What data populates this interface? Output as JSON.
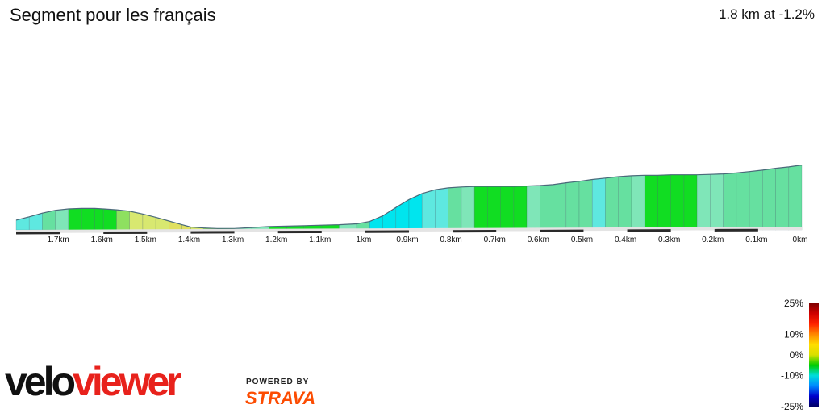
{
  "header": {
    "title": "Segment pour les français",
    "summary": "1.8 km at -1.2%"
  },
  "chart_data": {
    "type": "area",
    "xlabel": "",
    "ylabel": "",
    "x_direction": "descending",
    "x_ticks": [
      "1.7km",
      "1.6km",
      "1.5km",
      "1.4km",
      "1.3km",
      "1.2km",
      "1.1km",
      "1km",
      "0.9km",
      "0.8km",
      "0.7km",
      "0.6km",
      "0.5km",
      "0.4km",
      "0.3km",
      "0.2km",
      "0.1km",
      "0km"
    ],
    "x_tick_values": [
      1.7,
      1.6,
      1.5,
      1.4,
      1.3,
      1.2,
      1.1,
      1.0,
      0.9,
      0.8,
      0.7,
      0.6,
      0.5,
      0.4,
      0.3,
      0.2,
      0.1,
      0.0
    ],
    "x_range": [
      1.8,
      0.0
    ],
    "profile": {
      "distance_km": [
        1.8,
        1.77,
        1.74,
        1.71,
        1.68,
        1.65,
        1.62,
        1.6,
        1.57,
        1.54,
        1.51,
        1.48,
        1.45,
        1.42,
        1.4,
        1.37,
        1.34,
        1.3,
        1.26,
        1.22,
        1.18,
        1.14,
        1.1,
        1.06,
        1.02,
        0.99,
        0.96,
        0.93,
        0.9,
        0.87,
        0.84,
        0.81,
        0.78,
        0.75,
        0.72,
        0.69,
        0.66,
        0.63,
        0.6,
        0.57,
        0.54,
        0.51,
        0.48,
        0.45,
        0.42,
        0.39,
        0.36,
        0.33,
        0.3,
        0.27,
        0.24,
        0.21,
        0.18,
        0.15,
        0.12,
        0.09,
        0.06,
        0.03,
        0.0
      ],
      "elevation_rel": [
        2.1,
        2.8,
        3.6,
        4.2,
        4.5,
        4.6,
        4.6,
        4.5,
        4.3,
        4.0,
        3.4,
        2.7,
        1.9,
        1.1,
        0.6,
        0.4,
        0.3,
        0.3,
        0.5,
        0.7,
        0.8,
        0.9,
        1.0,
        1.1,
        1.3,
        1.8,
        3.0,
        4.8,
        6.5,
        7.8,
        8.6,
        9.0,
        9.2,
        9.3,
        9.3,
        9.3,
        9.3,
        9.4,
        9.5,
        9.7,
        10.1,
        10.4,
        10.8,
        11.1,
        11.4,
        11.6,
        11.7,
        11.7,
        11.8,
        11.8,
        11.8,
        11.9,
        12.0,
        12.2,
        12.5,
        12.8,
        13.2,
        13.5,
        13.9
      ],
      "segment_grade_pct": [
        -5,
        -4,
        -3,
        -1,
        0,
        0,
        0,
        0,
        1,
        3,
        4,
        4,
        5,
        5,
        4,
        2,
        0,
        -1,
        -1,
        0,
        0,
        0,
        0,
        -1,
        -3,
        -7,
        -9,
        -9,
        -8,
        -6,
        -4,
        -2,
        -1,
        0,
        0,
        0,
        0,
        -1,
        -3,
        -3,
        -3,
        -3,
        -4,
        -3,
        -2,
        -1,
        0,
        0,
        0,
        0,
        -1,
        -1,
        -2,
        -2,
        -2,
        -3,
        -3,
        -2,
        -2
      ]
    },
    "color_scale": {
      "labels": [
        "25%",
        "10%",
        "0%",
        "-10%",
        "-25%"
      ],
      "values": [
        25,
        10,
        0,
        -10,
        -25
      ],
      "colors": [
        "#7f0000",
        "#d00000",
        "#ff2200",
        "#ff8800",
        "#ffdd00",
        "#d8e000",
        "#00cc00",
        "#00dddd",
        "#0088ff",
        "#0000cc",
        "#000066"
      ]
    }
  },
  "branding": {
    "logo_velo": "velo",
    "logo_viewer": "viewer",
    "powered_by": "POWERED BY",
    "strava": "STRAVA"
  }
}
